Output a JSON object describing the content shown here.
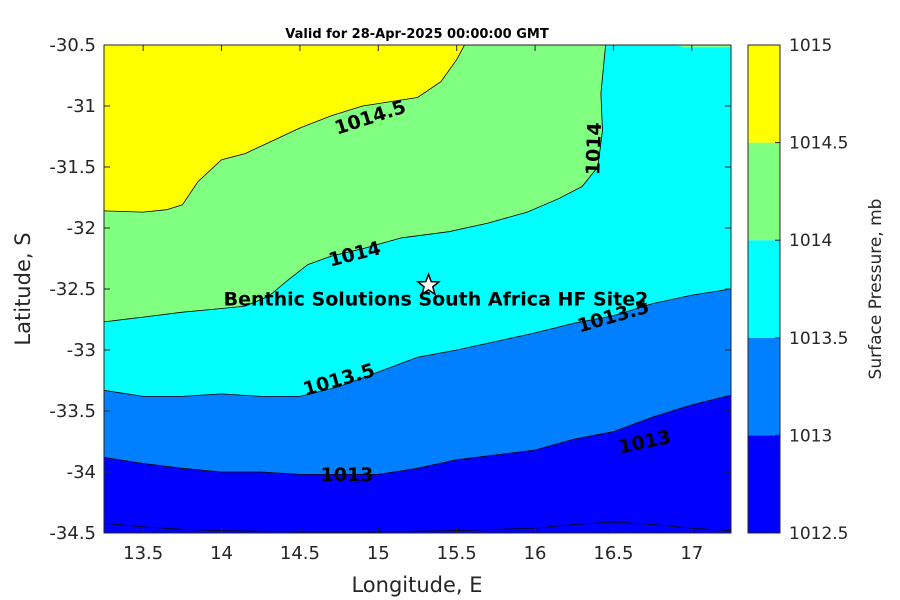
{
  "chart_data": {
    "type": "contour",
    "title": "Valid for 28-Apr-2025 00:00:00 GMT",
    "xlabel": "Longitude, E",
    "ylabel": "Latitude, S",
    "xlim": [
      13.25,
      17.25
    ],
    "ylim": [
      -34.5,
      -30.5
    ],
    "xticks": [
      "13.5",
      "14",
      "14.5",
      "15",
      "15.5",
      "16",
      "16.5",
      "17"
    ],
    "yticks": [
      "-30.5",
      "-31",
      "-31.5",
      "-32",
      "-32.5",
      "-33",
      "-33.5",
      "-34",
      "-34.5"
    ],
    "colorbar": {
      "label": "Surface Pressure, mb",
      "levels": [
        1012.5,
        1013,
        1013.5,
        1014,
        1014.5,
        1015
      ],
      "tick_labels": [
        "1012.5",
        "1013",
        "1013.5",
        "1014",
        "1014.5",
        "1015"
      ],
      "colors": [
        "#0000ff",
        "#0080ff",
        "#00ffff",
        "#80ff80",
        "#ffff00",
        "#ff8000"
      ]
    },
    "contours": [
      {
        "level": 1014.5,
        "label": "1014.5",
        "points": [
          [
            13.25,
            -31.86
          ],
          [
            13.5,
            -31.87
          ],
          [
            13.65,
            -31.85
          ],
          [
            13.75,
            -31.81
          ],
          [
            13.85,
            -31.62
          ],
          [
            14,
            -31.44
          ],
          [
            14.15,
            -31.39
          ],
          [
            14.3,
            -31.3
          ],
          [
            14.5,
            -31.18
          ],
          [
            14.7,
            -31.08
          ],
          [
            14.9,
            -31.0
          ],
          [
            15.1,
            -30.96
          ],
          [
            15.25,
            -30.93
          ],
          [
            15.4,
            -30.8
          ],
          [
            15.5,
            -30.62
          ],
          [
            15.55,
            -30.5
          ]
        ]
      },
      {
        "level": 1014,
        "label": "1014",
        "points": [
          [
            13.25,
            -32.77
          ],
          [
            13.5,
            -32.73
          ],
          [
            13.75,
            -32.69
          ],
          [
            14,
            -32.66
          ],
          [
            14.15,
            -32.64
          ],
          [
            14.3,
            -32.56
          ],
          [
            14.42,
            -32.43
          ],
          [
            14.55,
            -32.3
          ],
          [
            14.7,
            -32.23
          ],
          [
            14.9,
            -32.17
          ],
          [
            15.15,
            -32.08
          ],
          [
            15.45,
            -32.03
          ],
          [
            15.7,
            -31.96
          ],
          [
            15.95,
            -31.87
          ],
          [
            16.15,
            -31.76
          ],
          [
            16.3,
            -31.66
          ],
          [
            16.4,
            -31.5
          ],
          [
            16.43,
            -31.2
          ],
          [
            16.42,
            -30.9
          ],
          [
            16.45,
            -30.5
          ]
        ]
      },
      {
        "level": 1014,
        "label": "",
        "points": [
          [
            16.9,
            -30.5
          ],
          [
            17,
            -30.5
          ],
          [
            17.25,
            -30.5
          ]
        ]
      },
      {
        "level": 1013.5,
        "label": "1013.5",
        "points": [
          [
            13.25,
            -33.33
          ],
          [
            13.5,
            -33.38
          ],
          [
            13.75,
            -33.38
          ],
          [
            14,
            -33.36
          ],
          [
            14.25,
            -33.38
          ],
          [
            14.5,
            -33.38
          ],
          [
            14.75,
            -33.3
          ],
          [
            15,
            -33.18
          ],
          [
            15.25,
            -33.06
          ],
          [
            15.5,
            -33.0
          ],
          [
            15.75,
            -32.93
          ],
          [
            16,
            -32.86
          ],
          [
            16.25,
            -32.78
          ],
          [
            16.5,
            -32.72
          ],
          [
            16.75,
            -32.62
          ],
          [
            17,
            -32.55
          ],
          [
            17.25,
            -32.5
          ]
        ]
      },
      {
        "level": 1013,
        "label": "1013",
        "points": [
          [
            13.25,
            -33.88
          ],
          [
            13.5,
            -33.93
          ],
          [
            13.75,
            -33.97
          ],
          [
            14,
            -34.0
          ],
          [
            14.25,
            -34.0
          ],
          [
            14.5,
            -34.02
          ],
          [
            14.75,
            -34.02
          ],
          [
            15,
            -34.02
          ],
          [
            15.25,
            -33.97
          ],
          [
            15.5,
            -33.9
          ],
          [
            15.75,
            -33.86
          ],
          [
            16,
            -33.82
          ],
          [
            16.25,
            -33.73
          ],
          [
            16.5,
            -33.67
          ],
          [
            16.75,
            -33.55
          ],
          [
            17,
            -33.45
          ],
          [
            17.25,
            -33.37
          ]
        ]
      },
      {
        "level": 1012.5,
        "label": "",
        "points": [
          [
            13.25,
            -34.42
          ],
          [
            13.5,
            -34.45
          ],
          [
            13.75,
            -34.47
          ],
          [
            14,
            -34.48
          ],
          [
            14.5,
            -34.49
          ],
          [
            15,
            -34.49
          ],
          [
            15.5,
            -34.48
          ],
          [
            16,
            -34.46
          ],
          [
            16.25,
            -34.43
          ],
          [
            16.5,
            -34.41
          ],
          [
            16.75,
            -34.43
          ],
          [
            17,
            -34.46
          ],
          [
            17.25,
            -34.48
          ]
        ]
      }
    ],
    "contour_labels": [
      {
        "text": "1014.5",
        "x": 14.95,
        "y": -31.1,
        "angle": -18
      },
      {
        "text": "1014",
        "x": 16.38,
        "y": -31.35,
        "angle": -88
      },
      {
        "text": "1014",
        "x": 14.85,
        "y": -32.22,
        "angle": -14
      },
      {
        "text": "1013.5",
        "x": 14.75,
        "y": -33.25,
        "angle": -16
      },
      {
        "text": "1013.5",
        "x": 16.5,
        "y": -32.73,
        "angle": -16
      },
      {
        "text": "1013",
        "x": 14.8,
        "y": -34.03,
        "angle": 0
      },
      {
        "text": "1013",
        "x": 16.7,
        "y": -33.76,
        "angle": -12
      }
    ],
    "site": {
      "name": "Benthic Solutions South Africa HF Site2",
      "lon": 15.32,
      "lat": -32.47
    },
    "grid": false
  }
}
